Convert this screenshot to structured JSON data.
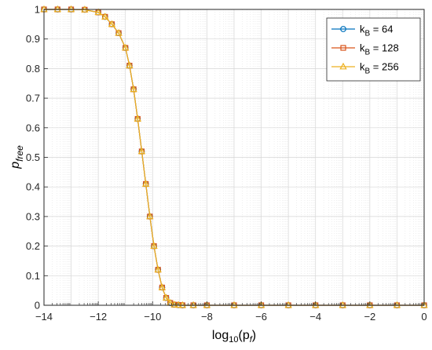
{
  "chart_data": {
    "type": "line",
    "xlabel": {
      "main": "log",
      "sub": "10",
      "paren_open": "(p",
      "paren_sub": "f",
      "paren_close": ")"
    },
    "ylabel": {
      "main": "p",
      "sub": "free"
    },
    "xlim": [
      -14,
      0
    ],
    "ylim": [
      0,
      1
    ],
    "x_ticks": [
      -14,
      -12,
      -10,
      -8,
      -6,
      -4,
      -2,
      0
    ],
    "x_tick_labels": [
      "−14",
      "−12",
      "−10",
      "−8",
      "−6",
      "−4",
      "−2",
      "0"
    ],
    "y_ticks": [
      0,
      0.1,
      0.2,
      0.3,
      0.4,
      0.5,
      0.6,
      0.7,
      0.8,
      0.9,
      1
    ],
    "y_tick_labels": [
      "0",
      "0.1",
      "0.2",
      "0.3",
      "0.4",
      "0.5",
      "0.6",
      "0.7",
      "0.8",
      "0.9",
      "1"
    ],
    "grid": true,
    "minor_grid": true,
    "legend_position": "top-right",
    "x": [
      -14,
      -13.5,
      -13,
      -12.5,
      -12,
      -11.75,
      -11.5,
      -11.25,
      -11,
      -10.85,
      -10.7,
      -10.55,
      -10.4,
      -10.25,
      -10.1,
      -9.95,
      -9.8,
      -9.65,
      -9.5,
      -9.35,
      -9.2,
      -9.05,
      -8.9,
      -8.5,
      -8,
      -7,
      -6,
      -5,
      -4,
      -3,
      -2,
      -1,
      0
    ],
    "series": [
      {
        "name_main": "k",
        "name_sub": "B",
        "name_rest": " = 64",
        "color": "#0072BD",
        "marker": "circle",
        "values": [
          1,
          1,
          1,
          0.999,
          0.99,
          0.975,
          0.95,
          0.92,
          0.87,
          0.81,
          0.73,
          0.63,
          0.52,
          0.41,
          0.3,
          0.2,
          0.12,
          0.06,
          0.025,
          0.008,
          0.002,
          0.001,
          0,
          0,
          0,
          0,
          0,
          0,
          0,
          0,
          0,
          0,
          0
        ]
      },
      {
        "name_main": "k",
        "name_sub": "B",
        "name_rest": " = 128",
        "color": "#D95319",
        "marker": "square",
        "values": [
          1,
          1,
          1,
          0.999,
          0.99,
          0.975,
          0.95,
          0.92,
          0.87,
          0.81,
          0.73,
          0.63,
          0.52,
          0.41,
          0.3,
          0.2,
          0.12,
          0.06,
          0.025,
          0.008,
          0.002,
          0.001,
          0,
          0,
          0,
          0,
          0,
          0,
          0,
          0,
          0,
          0,
          0
        ]
      },
      {
        "name_main": "k",
        "name_sub": "B",
        "name_rest": " = 256",
        "color": "#EDB120",
        "marker": "triangle",
        "values": [
          1,
          1,
          1,
          0.999,
          0.99,
          0.975,
          0.95,
          0.92,
          0.87,
          0.81,
          0.73,
          0.63,
          0.52,
          0.41,
          0.3,
          0.2,
          0.12,
          0.06,
          0.025,
          0.008,
          0.002,
          0.001,
          0,
          0,
          0,
          0,
          0,
          0,
          0,
          0,
          0,
          0,
          0
        ]
      }
    ]
  }
}
